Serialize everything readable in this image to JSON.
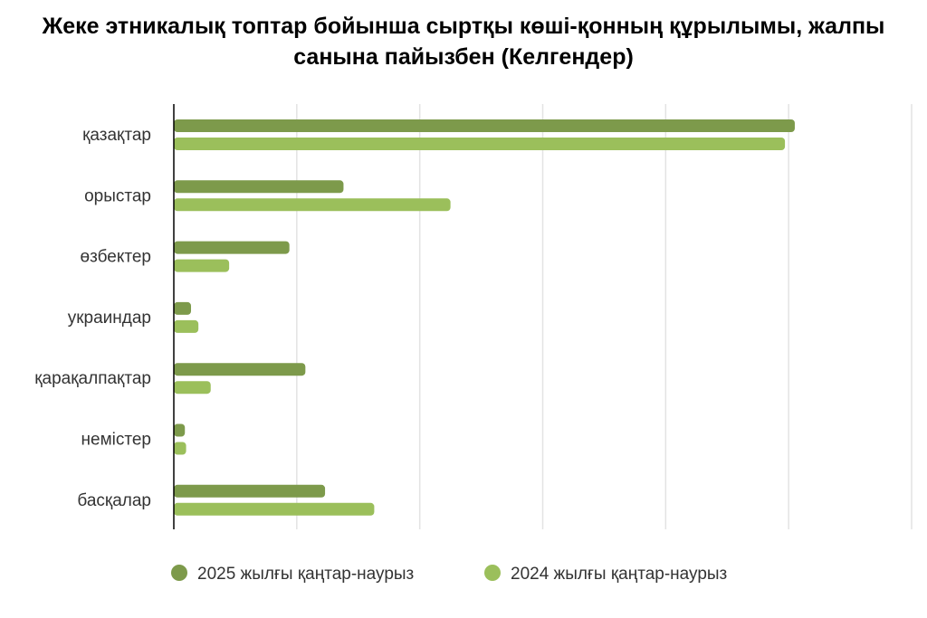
{
  "chart_data": {
    "type": "bar",
    "orientation": "horizontal",
    "title": "Жеке этникалық топтар бойынша сыртқы көші-қонның құрылымы, жалпы санына пайызбен (Келгендер)",
    "categories": [
      "қазақтар",
      "орыстар",
      "өзбектер",
      "украиндар",
      "қарақалпақтар",
      "немістер",
      "басқалар"
    ],
    "series": [
      {
        "name": "2025 жылғы қаңтар-наурыз",
        "color": "#7d9a4b",
        "values": [
          50.5,
          13.8,
          9.4,
          1.4,
          10.7,
          0.9,
          12.3
        ]
      },
      {
        "name": "2024 жылғы қаңтар-наурыз",
        "color": "#9bbf5b",
        "values": [
          49.7,
          22.5,
          4.5,
          2.0,
          3.0,
          1.0,
          16.3
        ]
      }
    ],
    "xlim": [
      0,
      60
    ],
    "x_tick_labels_shown": false,
    "grid": "vertical",
    "legend_position": "bottom"
  }
}
